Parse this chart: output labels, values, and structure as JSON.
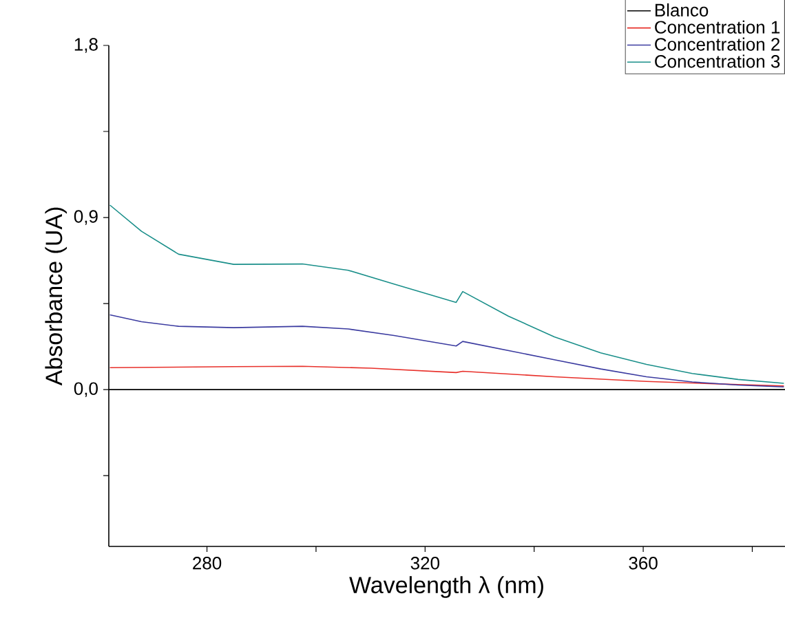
{
  "chart_data": {
    "type": "line",
    "xlabel": "Wavelength λ (nm)",
    "ylabel": "Absorbance (UA)",
    "xlim": [
      262,
      386
    ],
    "ylim": [
      -0.82,
      1.8
    ],
    "xticks": [
      280,
      {
        "value": 300,
        "label": null
      },
      320,
      {
        "value": 340,
        "label": null
      },
      360,
      {
        "value": 380,
        "label": null
      }
    ],
    "yticks": [
      {
        "value": -0.45,
        "label": null
      },
      {
        "value": 0,
        "label": "0,0"
      },
      {
        "value": 0.45,
        "label": null
      },
      {
        "value": 0.9,
        "label": "0,9"
      },
      {
        "value": 1.35,
        "label": null
      },
      {
        "value": 1.8,
        "label": "1,8"
      }
    ],
    "legend": "top right",
    "series": [
      {
        "name": "Blanco",
        "color": "#000000",
        "x": [
          262,
          386
        ],
        "values": [
          0,
          0
        ]
      },
      {
        "name": "Concentration 1",
        "color": "#e8302a",
        "x": [
          262.2,
          284.9,
          297.5,
          310.1,
          325.7,
          326.9,
          343.7,
          360.6,
          377.4,
          385.8
        ],
        "values": [
          0.115,
          0.12,
          0.122,
          0.112,
          0.089,
          0.096,
          0.067,
          0.043,
          0.026,
          0.019
        ]
      },
      {
        "name": "Concentration 2",
        "color": "#3b3ba0",
        "x": [
          262.2,
          268.0,
          274.8,
          284.9,
          297.5,
          305.9,
          314.3,
          325.7,
          326.9,
          335.3,
          343.7,
          352.2,
          360.6,
          369.0,
          377.4,
          385.8
        ],
        "values": [
          0.391,
          0.355,
          0.331,
          0.324,
          0.331,
          0.317,
          0.283,
          0.228,
          0.252,
          0.204,
          0.156,
          0.108,
          0.067,
          0.04,
          0.024,
          0.014
        ]
      },
      {
        "name": "Concentration 3",
        "color": "#1a8f8a",
        "x": [
          262.2,
          268.0,
          274.8,
          284.9,
          297.5,
          305.9,
          314.3,
          325.7,
          326.9,
          335.3,
          343.7,
          352.2,
          360.6,
          369.0,
          377.4,
          385.8
        ],
        "values": [
          0.965,
          0.828,
          0.708,
          0.655,
          0.657,
          0.624,
          0.552,
          0.456,
          0.513,
          0.384,
          0.276,
          0.192,
          0.132,
          0.084,
          0.053,
          0.033
        ]
      }
    ]
  }
}
